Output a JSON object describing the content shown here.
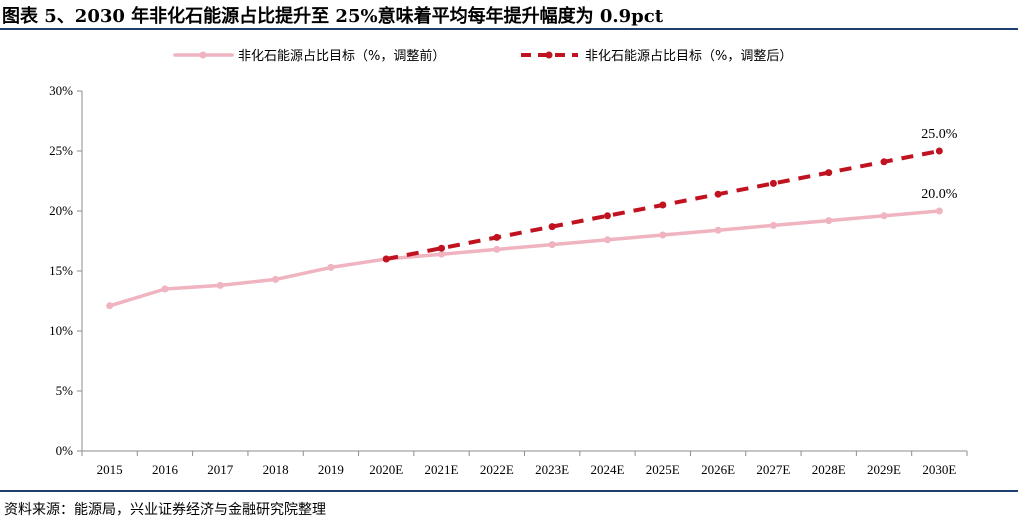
{
  "title": "图表 5、2030 年非化石能源占比提升至 25%意味着平均每年提升幅度为 0.9pct",
  "source": "资料来源：能源局，兴业证券经济与金融研究院整理",
  "chart_data": {
    "type": "line",
    "title": "图表 5、2030 年非化石能源占比提升至 25%意味着平均每年提升幅度为 0.9pct",
    "xlabel": "",
    "ylabel": "",
    "categories": [
      "2015",
      "2016",
      "2017",
      "2018",
      "2019",
      "2020E",
      "2021E",
      "2022E",
      "2023E",
      "2024E",
      "2025E",
      "2026E",
      "2027E",
      "2028E",
      "2029E",
      "2030E"
    ],
    "y_ticks": [
      "0%",
      "5%",
      "10%",
      "15%",
      "20%",
      "25%",
      "30%"
    ],
    "ylim": [
      0,
      30
    ],
    "grid": false,
    "legend_position": "top",
    "series": [
      {
        "name": "非化石能源占比目标（%，调整前）",
        "color": "#f0b3c0",
        "style": "solid",
        "values": [
          12.1,
          13.5,
          13.8,
          14.3,
          15.3,
          16.0,
          16.4,
          16.8,
          17.2,
          17.6,
          18.0,
          18.4,
          18.8,
          19.2,
          19.6,
          20.0
        ]
      },
      {
        "name": "非化石能源占比目标（%，调整后）",
        "color": "#c0121f",
        "style": "dashed",
        "values": [
          null,
          null,
          null,
          null,
          null,
          16.0,
          16.9,
          17.8,
          18.7,
          19.6,
          20.5,
          21.4,
          22.3,
          23.2,
          24.1,
          25.0
        ]
      }
    ],
    "annotations": [
      {
        "text": "25.0%",
        "series": 1,
        "index": 15
      },
      {
        "text": "20.0%",
        "series": 0,
        "index": 15
      }
    ]
  }
}
